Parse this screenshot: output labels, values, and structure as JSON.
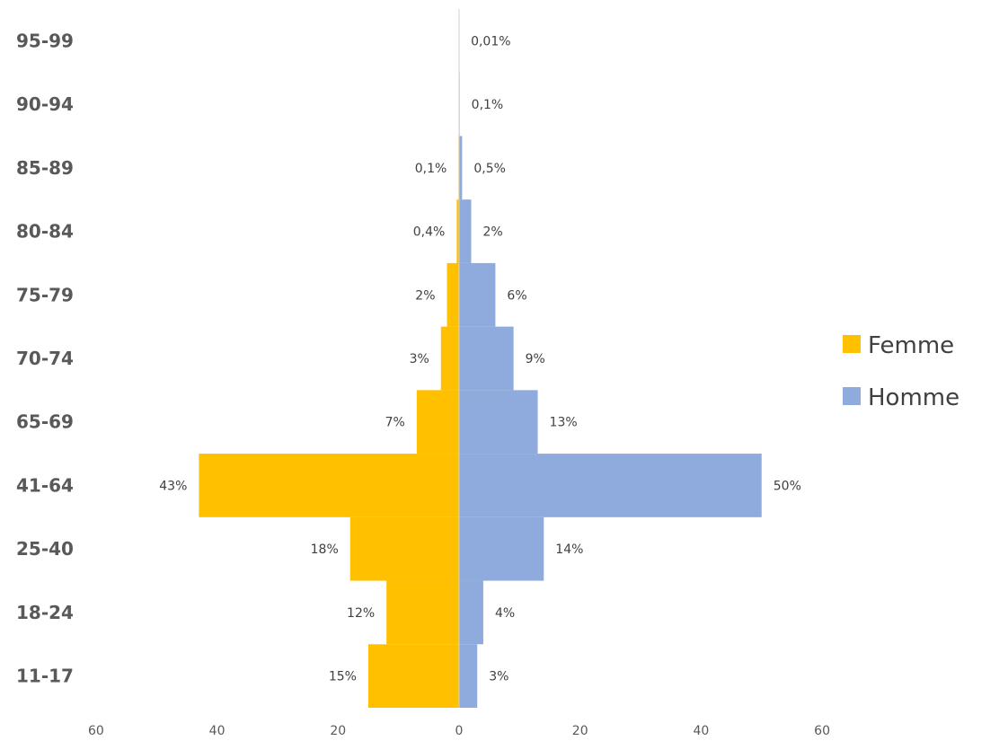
{
  "chart_data": {
    "type": "bar",
    "orientation": "horizontal-population-pyramid",
    "categories": [
      "95-99",
      "90-94",
      "85-89",
      "80-84",
      "75-79",
      "70-74",
      "65-69",
      "41-64",
      "25-40",
      "18-24",
      "11-17"
    ],
    "series": [
      {
        "name": "Femme",
        "color": "#FFC000",
        "values": [
          0,
          0,
          0.1,
          0.4,
          2,
          3,
          7,
          43,
          18,
          12,
          15
        ],
        "labels": [
          "",
          "",
          "0,1%",
          "0,4%",
          "2%",
          "3%",
          "7%",
          "43%",
          "18%",
          "12%",
          "15%"
        ]
      },
      {
        "name": "Homme",
        "color": "#8FAADC",
        "values": [
          0.01,
          0.1,
          0.5,
          2,
          6,
          9,
          13,
          50,
          14,
          4,
          3
        ],
        "labels": [
          "0,01%",
          "0,1%",
          "0,5%",
          "2%",
          "6%",
          "9%",
          "13%",
          "50%",
          "14%",
          "4%",
          "3%"
        ]
      }
    ],
    "xlim": [
      -60,
      60
    ],
    "xticks": [
      -60,
      -40,
      -20,
      0,
      20,
      40,
      60
    ],
    "xtick_labels": [
      "60",
      "40",
      "20",
      "0",
      "20",
      "40",
      "60"
    ],
    "title": "",
    "xlabel": "",
    "ylabel": "",
    "grid": false,
    "legend_position": "right"
  }
}
